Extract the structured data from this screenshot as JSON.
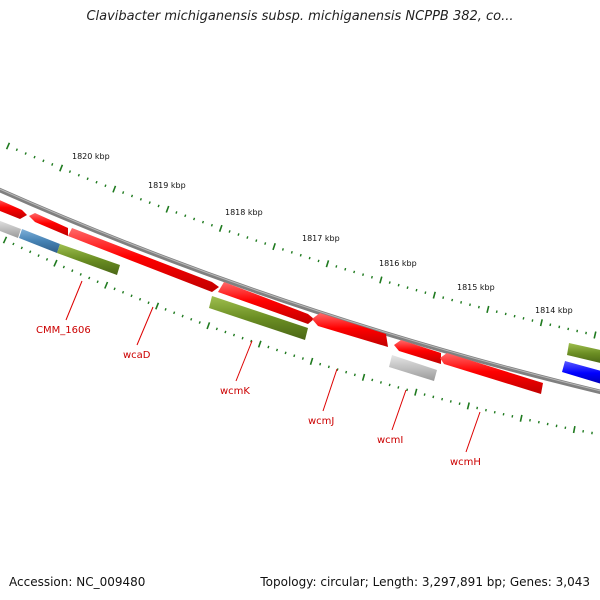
{
  "title": "Clavibacter michiganensis subsp. michiganensis NCPPB 382, co...",
  "footer": {
    "accession": "Accession: NC_009480",
    "summary": "Topology: circular; Length: 3,297,891 bp; Genes: 3,043"
  },
  "scale_labels": [
    "1820 kbp",
    "1819 kbp",
    "1818 kbp",
    "1817 kbp",
    "1816 kbp",
    "1815 kbp",
    "1814 kbp"
  ],
  "gene_labels": [
    "CMM_1606",
    "wcaD",
    "wcmK",
    "wcmJ",
    "wcmI",
    "wcmH"
  ],
  "colors": {
    "red_feature": "#ff1a1a",
    "green_feature": "#6b8e23",
    "grey_feature": "#c0c0c0",
    "blue_feature": "#1a1aff",
    "steel_feature": "#4682b4",
    "backbone": "#808080",
    "tick": "#1f7a1f",
    "label": "#cc0000"
  }
}
